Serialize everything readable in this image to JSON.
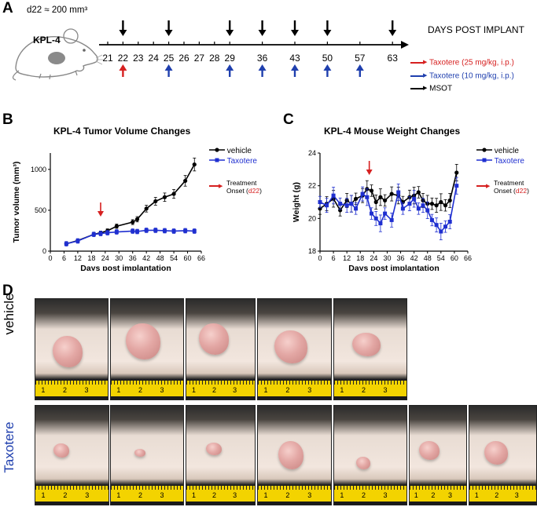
{
  "panel_a": {
    "label": "A",
    "model": "KPL-4",
    "volume_note": "d22 ≈ 200 mm³",
    "axis_title": "DAYS POST IMPLANT",
    "days": [
      "21",
      "22",
      "23",
      "24",
      "25",
      "26",
      "27",
      "28",
      "29",
      "36",
      "43",
      "50",
      "57",
      "63"
    ],
    "mouse_label": "KPL-4",
    "msot_days": [
      "22",
      "25",
      "29",
      "36",
      "43",
      "50",
      "63"
    ],
    "taxotere_25_days": [
      "22"
    ],
    "taxotere_10_days": [
      "25",
      "29",
      "36",
      "43",
      "50",
      "57"
    ],
    "legend": [
      {
        "label": "Taxotere (25 mg/kg, i.p.)",
        "color": "#d62020"
      },
      {
        "label": "Taxotere (10 mg/kg, i.p.)",
        "color": "#1f3fae"
      },
      {
        "label": "MSOT",
        "color": "#000000"
      }
    ]
  },
  "chart_data": [
    {
      "panel": "B",
      "type": "line",
      "title": "KPL-4 Tumor Volume Changes",
      "xlabel": "Days post implantation",
      "ylabel": "Tumor volume (mm³)",
      "xlim": [
        0,
        66
      ],
      "ylim": [
        0,
        1200
      ],
      "xticks": [
        0,
        6,
        12,
        18,
        24,
        30,
        36,
        42,
        48,
        54,
        60,
        66
      ],
      "yticks": [
        0,
        500,
        1000
      ],
      "series": [
        {
          "name": "vehicle",
          "color": "#000000",
          "x": [
            7,
            12,
            19,
            22,
            25,
            29,
            36,
            38,
            42,
            46,
            50,
            54,
            59,
            63
          ],
          "values": [
            90,
            130,
            205,
            225,
            250,
            305,
            355,
            390,
            520,
            610,
            660,
            700,
            860,
            1060
          ]
        },
        {
          "name": "Taxotere",
          "color": "#1f2fd0",
          "x": [
            7,
            12,
            19,
            22,
            25,
            29,
            36,
            38,
            42,
            46,
            50,
            54,
            59,
            63
          ],
          "values": [
            90,
            125,
            205,
            215,
            225,
            235,
            245,
            240,
            255,
            255,
            250,
            245,
            250,
            245
          ]
        }
      ],
      "annotation": {
        "text_prefix": "Treatment",
        "text": "Onset (",
        "highlight": "d22",
        "text_suffix": ")",
        "arrow_day": 22
      }
    },
    {
      "panel": "C",
      "type": "line",
      "title": "KPL-4 Mouse Weight Changes",
      "xlabel": "Days post implantation",
      "ylabel": "Weight (g)",
      "xlim": [
        0,
        66
      ],
      "ylim": [
        18,
        24
      ],
      "xticks": [
        0,
        6,
        12,
        18,
        24,
        30,
        36,
        42,
        48,
        54,
        60,
        66
      ],
      "yticks": [
        18,
        20,
        22,
        24
      ],
      "series": [
        {
          "name": "vehicle",
          "color": "#000000",
          "x": [
            0,
            3,
            6,
            9,
            12,
            14,
            16,
            19,
            21,
            23,
            25,
            27,
            29,
            32,
            35,
            37,
            40,
            42,
            44,
            46,
            48,
            50,
            52,
            54,
            56,
            58,
            61
          ],
          "values": [
            20.6,
            20.9,
            21.2,
            20.5,
            21.1,
            20.9,
            21.2,
            21.4,
            21.8,
            21.7,
            21.0,
            21.3,
            21.1,
            21.5,
            21.4,
            21.0,
            21.3,
            21.4,
            21.6,
            21.1,
            20.9,
            20.9,
            20.8,
            21.0,
            20.8,
            21.1,
            22.8
          ]
        },
        {
          "name": "Taxotere",
          "color": "#1f2fd0",
          "x": [
            0,
            3,
            6,
            9,
            12,
            14,
            16,
            19,
            21,
            23,
            25,
            27,
            29,
            32,
            35,
            37,
            40,
            42,
            44,
            46,
            48,
            50,
            52,
            54,
            56,
            58,
            61
          ],
          "values": [
            21.0,
            20.8,
            21.4,
            20.9,
            20.8,
            20.9,
            20.6,
            21.5,
            21.3,
            20.3,
            20.0,
            19.7,
            20.3,
            19.9,
            21.6,
            20.6,
            20.9,
            21.2,
            20.6,
            20.8,
            20.5,
            19.9,
            19.6,
            19.2,
            19.5,
            19.8,
            22.0
          ]
        }
      ],
      "annotation": {
        "text_prefix": "Treatment",
        "text": "Onset (",
        "highlight": "d22",
        "text_suffix": ")",
        "arrow_day": 22
      }
    }
  ],
  "panel_d": {
    "label": "D",
    "rows": [
      {
        "label": "vehicle",
        "color": "#000000",
        "count": 5,
        "ruler_digits": [
          "1",
          "2",
          "3"
        ]
      },
      {
        "label": "Taxotere",
        "color": "#1f3fae",
        "count": 7,
        "ruler_digits": [
          "1",
          "2",
          "3"
        ]
      }
    ]
  }
}
